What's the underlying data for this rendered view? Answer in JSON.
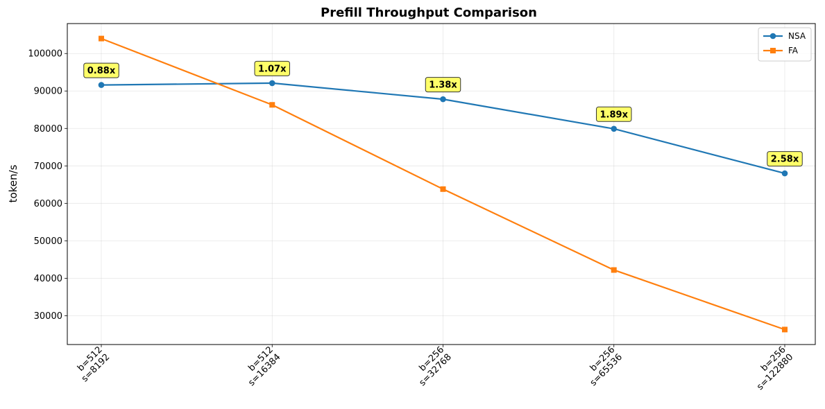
{
  "chart_data": {
    "type": "line",
    "title": "Prefill Throughput Comparison",
    "xlabel": "",
    "ylabel": "token/s",
    "categories": [
      [
        "b=512",
        "s=8192"
      ],
      [
        "b=512",
        "s=16384"
      ],
      [
        "b=256",
        "s=32768"
      ],
      [
        "b=256",
        "s=65536"
      ],
      [
        "b=256",
        "s=122880"
      ]
    ],
    "series": [
      {
        "name": "NSA",
        "color": "#1f77b4",
        "marker": "circle",
        "values": [
          91600,
          92100,
          87800,
          79900,
          68000
        ]
      },
      {
        "name": "FA",
        "color": "#ff7f0e",
        "marker": "square",
        "values": [
          104000,
          86300,
          63800,
          42200,
          26300
        ]
      }
    ],
    "annotations": [
      "0.88x",
      "1.07x",
      "1.38x",
      "1.89x",
      "2.58x"
    ],
    "annotation_style": {
      "background": "#ffff44",
      "border": "#333333"
    },
    "ylim": [
      22300,
      108000
    ],
    "yticks": [
      30000,
      40000,
      50000,
      60000,
      70000,
      80000,
      90000,
      100000
    ],
    "grid": true,
    "legend_position": "top-right"
  }
}
